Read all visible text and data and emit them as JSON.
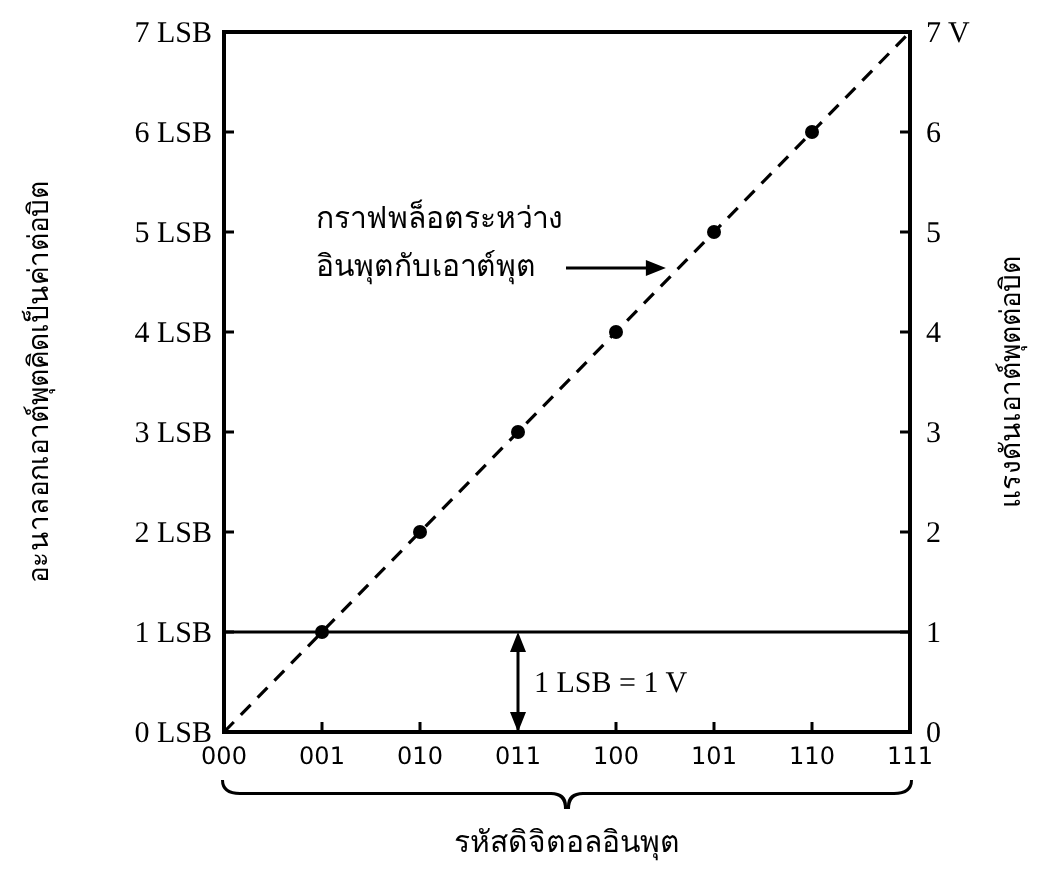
{
  "chart_data": {
    "type": "scatter",
    "xlabel": "รหัสดิจิตอลอินพุต",
    "ylabel": "อะนาลอกเอาต์พุตคิดเป็นค่าต่อบิต",
    "y2label": "แรงดันเอาต์พุตต่อบิต",
    "categories": [
      "000",
      "001",
      "010",
      "011",
      "100",
      "101",
      "110",
      "111"
    ],
    "series": [
      {
        "type": "line",
        "color": "#000000",
        "line_style": "dashed",
        "marker": "none",
        "values": [
          0,
          1,
          2,
          3,
          4,
          5,
          6,
          7
        ]
      },
      {
        "type": "scatter",
        "color": "#000000",
        "marker": "circle",
        "values": [
          null,
          1,
          2,
          3,
          4,
          5,
          6,
          null
        ]
      }
    ],
    "ylim": [
      0,
      7
    ],
    "yticks": [
      {
        "value": 0,
        "label": "0 LSB"
      },
      {
        "value": 1,
        "label": "1 LSB"
      },
      {
        "value": 2,
        "label": "2 LSB"
      },
      {
        "value": 3,
        "label": "3 LSB"
      },
      {
        "value": 4,
        "label": "4 LSB"
      },
      {
        "value": 5,
        "label": "5 LSB"
      },
      {
        "value": 6,
        "label": "6 LSB"
      },
      {
        "value": 7,
        "label": "7 LSB"
      }
    ],
    "y2lim": [
      0,
      7
    ],
    "y2ticks": [
      0,
      1,
      2,
      3,
      4,
      5,
      6,
      {
        "value": 7,
        "label": "7 V"
      }
    ],
    "ref_lines": [
      {
        "axis": "y",
        "value": 1,
        "color": "#000000",
        "line_style": "solid"
      }
    ],
    "annotations": [
      "กราฟพล็อตระหว่าง\nอินพุตกับเอาต์พุต",
      "1 LSB = 1 V"
    ],
    "grid": false
  }
}
